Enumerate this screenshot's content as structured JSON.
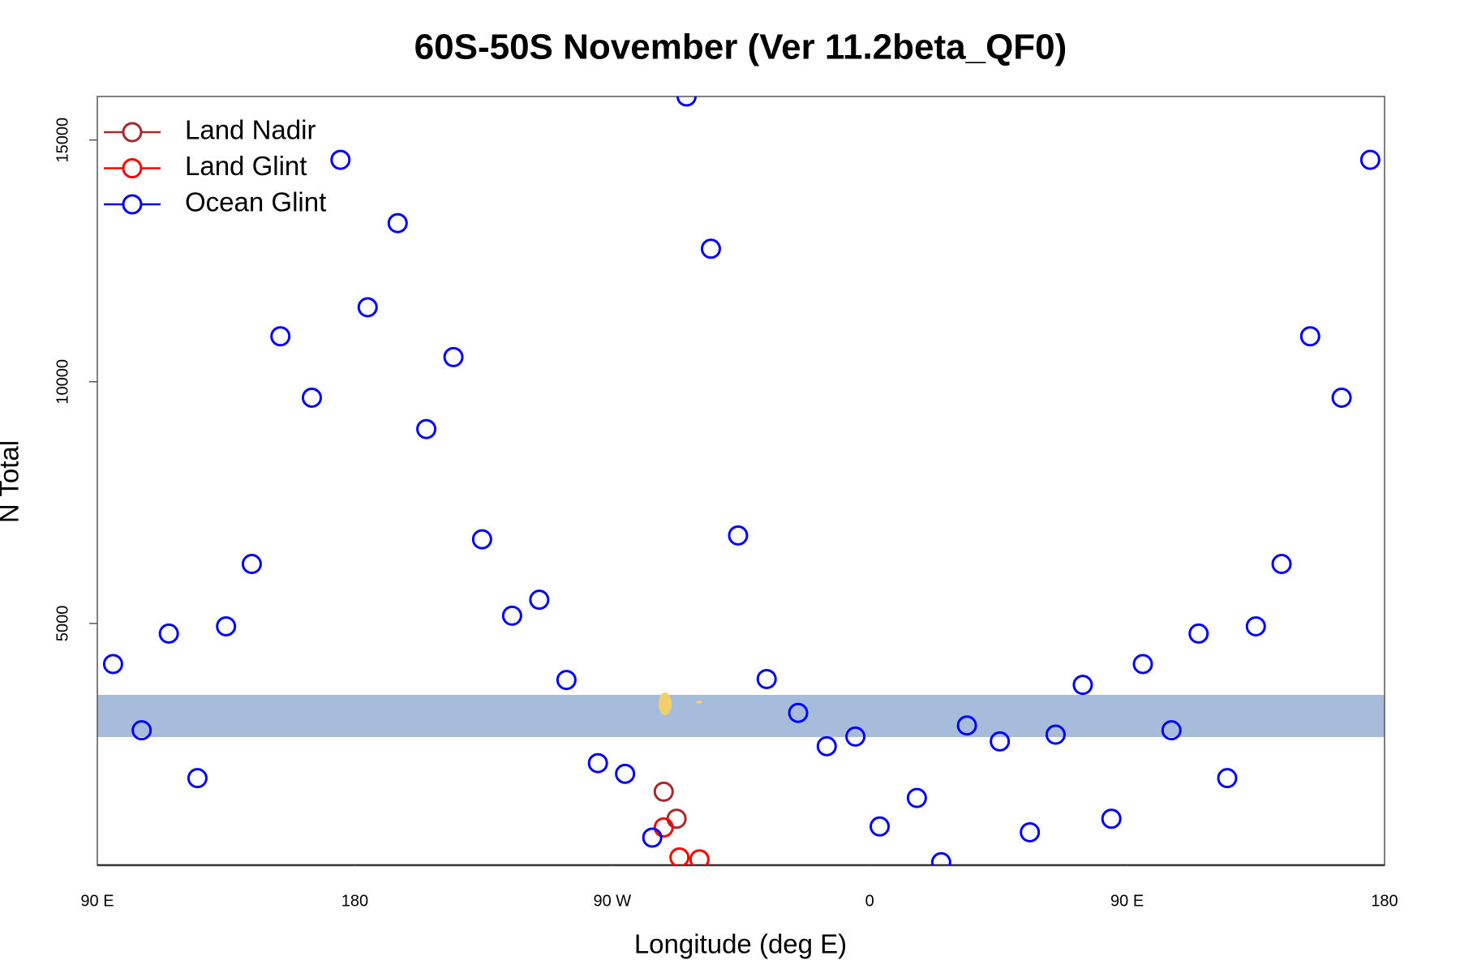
{
  "chart_data": {
    "type": "scatter",
    "title": "60S-50S November (Ver 11.2beta_QF0)",
    "x_label": "Longitude (deg E)",
    "y_label": "N Total",
    "xlim": [
      90,
      540
    ],
    "ylim": [
      0,
      15900
    ],
    "xticks": [
      {
        "value": 90,
        "label": "90 E"
      },
      180,
      {
        "value": 270,
        "label": "90 W"
      },
      {
        "value": 360,
        "label": "0"
      },
      {
        "value": 450,
        "label": "90 E"
      },
      {
        "value": 540,
        "label": "180"
      }
    ],
    "yticks": [
      5000,
      10000,
      15000
    ],
    "legend": "topleft",
    "series": [
      {
        "name": "Land Nadir",
        "color": "#a52a2a",
        "x": [
          288,
          292.5
        ],
        "values": [
          1520,
          960
        ]
      },
      {
        "name": "Land Glint",
        "color": "#ff0000",
        "x": [
          288,
          293.5,
          300.5
        ],
        "values": [
          780,
          160,
          120
        ]
      },
      {
        "name": "Ocean Glint",
        "color": "#0000ff",
        "x": [
          95.5,
          105.5,
          115,
          125,
          135,
          144,
          154,
          165,
          175,
          184.5,
          195,
          205,
          214.5,
          224.5,
          235,
          244.5,
          254,
          265,
          274.5,
          284,
          296,
          304.5,
          314,
          324,
          335,
          345,
          355,
          363.5,
          376.5,
          385,
          394,
          405.5,
          416,
          425,
          434.5,
          444.5,
          455.5,
          465.5,
          475,
          485,
          495,
          504,
          514,
          525,
          535
        ],
        "values": [
          4160,
          2790,
          4790,
          1800,
          4940,
          6230,
          10940,
          9670,
          14590,
          11540,
          13280,
          9020,
          10510,
          6740,
          5160,
          5490,
          3830,
          2110,
          1890,
          570,
          15900,
          12750,
          6820,
          3850,
          3150,
          2460,
          2660,
          800,
          1390,
          60,
          2890,
          2560,
          680,
          2700,
          3730,
          960,
          4160,
          2790,
          4790,
          1800,
          4940,
          6230,
          10940,
          9670,
          14590
        ]
      }
    ]
  }
}
